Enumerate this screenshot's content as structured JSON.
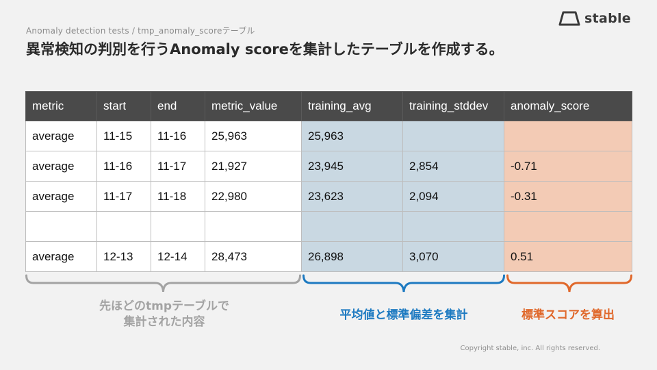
{
  "breadcrumb": "Anomaly detection tests / tmp_anomaly_scoreテーブル",
  "title": "異常検知の判別を行うAnomaly scoreを集計したテーブルを作成する。",
  "logo": {
    "text": "stable",
    "icon": "trapezoid-logo-icon"
  },
  "table": {
    "headers": [
      "metric",
      "start",
      "end",
      "metric_value",
      "training_avg",
      "training_stddev",
      "anomaly_score"
    ],
    "rows": [
      [
        "average",
        "11-15",
        "11-16",
        "25,963",
        "25,963",
        "",
        ""
      ],
      [
        "average",
        "11-16",
        "11-17",
        "21,927",
        "23,945",
        "2,854",
        "-0.71"
      ],
      [
        "average",
        "11-17",
        "11-18",
        "22,980",
        "23,623",
        "2,094",
        "-0.31"
      ],
      [
        "",
        "",
        "",
        "",
        "",
        "",
        ""
      ],
      [
        "average",
        "12-13",
        "12-14",
        "28,473",
        "26,898",
        "3,070",
        "0.51"
      ]
    ]
  },
  "annotations": {
    "gray_line1": "先ほどのtmpテーブルで",
    "gray_line2": "集計された内容",
    "blue": "平均値と標準偏差を集計",
    "orange": "標準スコアを算出"
  },
  "colors": {
    "header_bg": "#4a4a4a",
    "blue_cell": "#c9d8e2",
    "orange_cell": "#f3cbb5",
    "gray_brace": "#a3a3a3",
    "blue_brace": "#1d7ac1",
    "orange_brace": "#e0682b"
  },
  "copyright": "Copyright stable, inc. All rights reserved."
}
